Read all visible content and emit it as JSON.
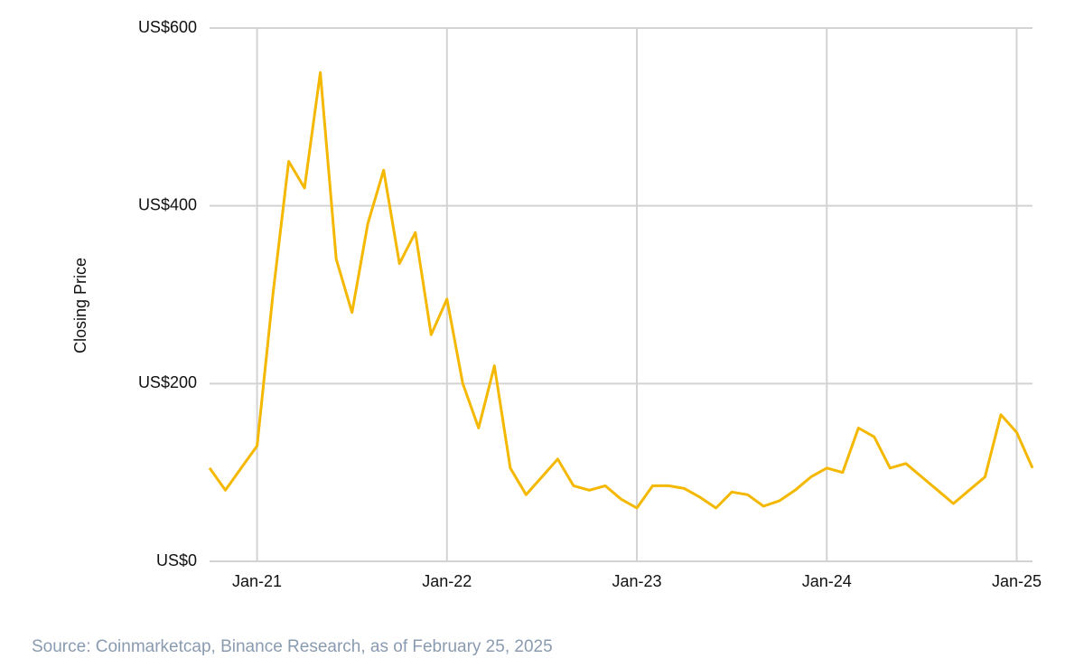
{
  "chart_data": {
    "type": "line",
    "y_axis_label": "Closing Price",
    "source": "Source: Coinmarketcap, Binance Research, as of February 25, 2025",
    "x": [
      "2020-10",
      "2020-11",
      "2020-12",
      "2021-01",
      "2021-02",
      "2021-03",
      "2021-04",
      "2021-05",
      "2021-06",
      "2021-07",
      "2021-08",
      "2021-09",
      "2021-10",
      "2021-11",
      "2021-12",
      "2022-01",
      "2022-02",
      "2022-03",
      "2022-04",
      "2022-05",
      "2022-06",
      "2022-07",
      "2022-08",
      "2022-09",
      "2022-10",
      "2022-11",
      "2022-12",
      "2023-01",
      "2023-02",
      "2023-03",
      "2023-04",
      "2023-05",
      "2023-06",
      "2023-07",
      "2023-08",
      "2023-09",
      "2023-10",
      "2023-11",
      "2023-12",
      "2024-01",
      "2024-02",
      "2024-03",
      "2024-04",
      "2024-05",
      "2024-06",
      "2024-07",
      "2024-08",
      "2024-09",
      "2024-10",
      "2024-11",
      "2024-12",
      "2025-01",
      "2025-02"
    ],
    "series": [
      {
        "name": "Closing Price",
        "color": "#f5b800",
        "values": [
          105,
          80,
          105,
          130,
          300,
          450,
          420,
          550,
          340,
          280,
          380,
          440,
          335,
          370,
          255,
          295,
          200,
          150,
          220,
          105,
          75,
          95,
          115,
          85,
          80,
          85,
          70,
          60,
          85,
          85,
          82,
          72,
          60,
          78,
          75,
          62,
          68,
          80,
          95,
          105,
          100,
          150,
          140,
          105,
          110,
          95,
          80,
          65,
          80,
          95,
          165,
          145,
          105
        ]
      }
    ],
    "xlim": [
      "2020-10",
      "2025-02"
    ],
    "xticks": [
      {
        "value": "2021-01",
        "label": "Jan-21"
      },
      {
        "value": "2022-01",
        "label": "Jan-22"
      },
      {
        "value": "2023-01",
        "label": "Jan-23"
      },
      {
        "value": "2024-01",
        "label": "Jan-24"
      },
      {
        "value": "2025-01",
        "label": "Jan-25"
      }
    ],
    "ylim": [
      0,
      600
    ],
    "yticks": [
      {
        "value": 0,
        "label": "US$0"
      },
      {
        "value": 200,
        "label": "US$200"
      },
      {
        "value": 400,
        "label": "US$400"
      },
      {
        "value": 600,
        "label": "US$600"
      }
    ],
    "grid": true
  }
}
